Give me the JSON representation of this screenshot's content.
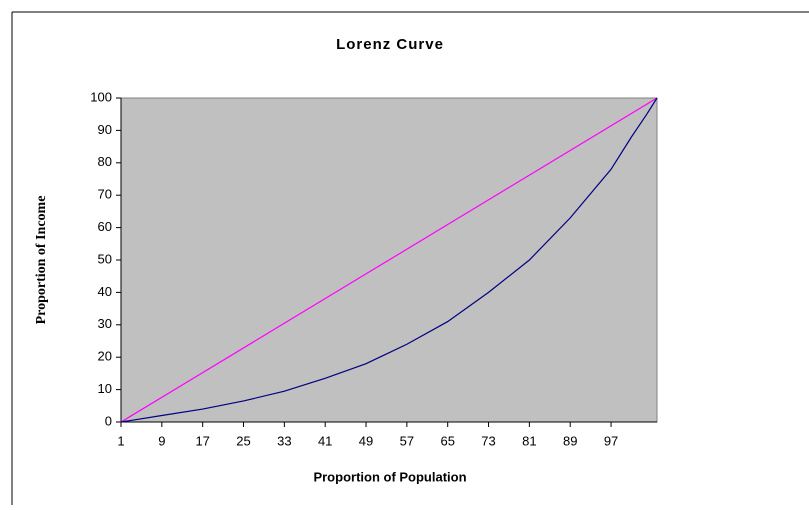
{
  "chart_data": {
    "type": "line",
    "title": "Lorenz Curve",
    "x_label": "Proportion of Population",
    "y_label": "Proportion of Income",
    "xlim": [
      1,
      106
    ],
    "xticks": [
      1,
      9,
      17,
      25,
      33,
      41,
      49,
      57,
      65,
      73,
      81,
      89,
      97
    ],
    "ylim": [
      0,
      100
    ],
    "yticks": [
      0,
      10,
      20,
      30,
      40,
      50,
      60,
      70,
      80,
      90,
      100
    ],
    "plot_background": "#c0c0c0",
    "series": [
      {
        "color": "#ff00ff",
        "x": [
          1,
          106
        ],
        "values": [
          0,
          100
        ]
      },
      {
        "color": "#000080",
        "x": [
          1,
          9,
          17,
          25,
          33,
          41,
          49,
          57,
          65,
          73,
          81,
          89,
          97,
          101,
          104,
          106
        ],
        "values": [
          0,
          2,
          4,
          6.5,
          9.5,
          13.5,
          18,
          24,
          31,
          40,
          50,
          63,
          78,
          88,
          95,
          100
        ]
      }
    ]
  }
}
